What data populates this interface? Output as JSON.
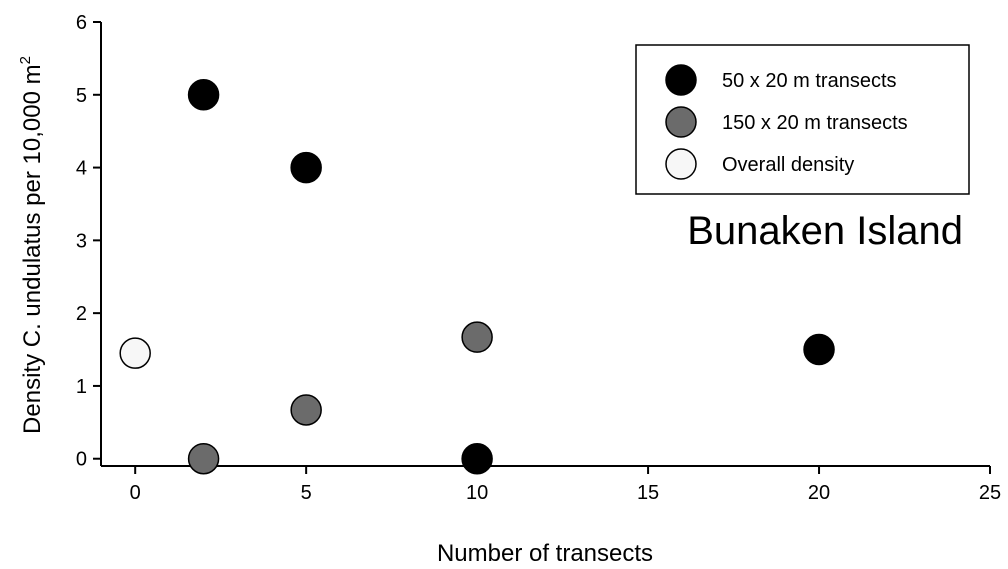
{
  "chart_data": {
    "type": "scatter",
    "title": "",
    "xlabel": "Number of transects",
    "ylabel": "Density C. undulatus per 10,000 m",
    "ylabel_superscript": "2",
    "xlim": [
      -1,
      25
    ],
    "ylim": [
      -0.1,
      6
    ],
    "xticks": [
      0,
      5,
      10,
      15,
      20,
      25
    ],
    "yticks": [
      0,
      1,
      2,
      3,
      4,
      5,
      6
    ],
    "grid": false,
    "legend_position": "top-right",
    "annotation": "Bunaken Island",
    "series": [
      {
        "name": "50 x 20 m transects",
        "color": "#000000",
        "points": [
          {
            "x": 2,
            "y": 5
          },
          {
            "x": 5,
            "y": 4
          },
          {
            "x": 10,
            "y": 0
          },
          {
            "x": 20,
            "y": 1.5
          }
        ]
      },
      {
        "name": "150 x 20 m transects",
        "color": "#6b6b6b",
        "points": [
          {
            "x": 2,
            "y": 0
          },
          {
            "x": 5,
            "y": 0.67
          },
          {
            "x": 10,
            "y": 1.67
          }
        ]
      },
      {
        "name": "Overall density",
        "color": "#f7f7f7",
        "points": [
          {
            "x": 0,
            "y": 1.45
          }
        ]
      }
    ]
  }
}
